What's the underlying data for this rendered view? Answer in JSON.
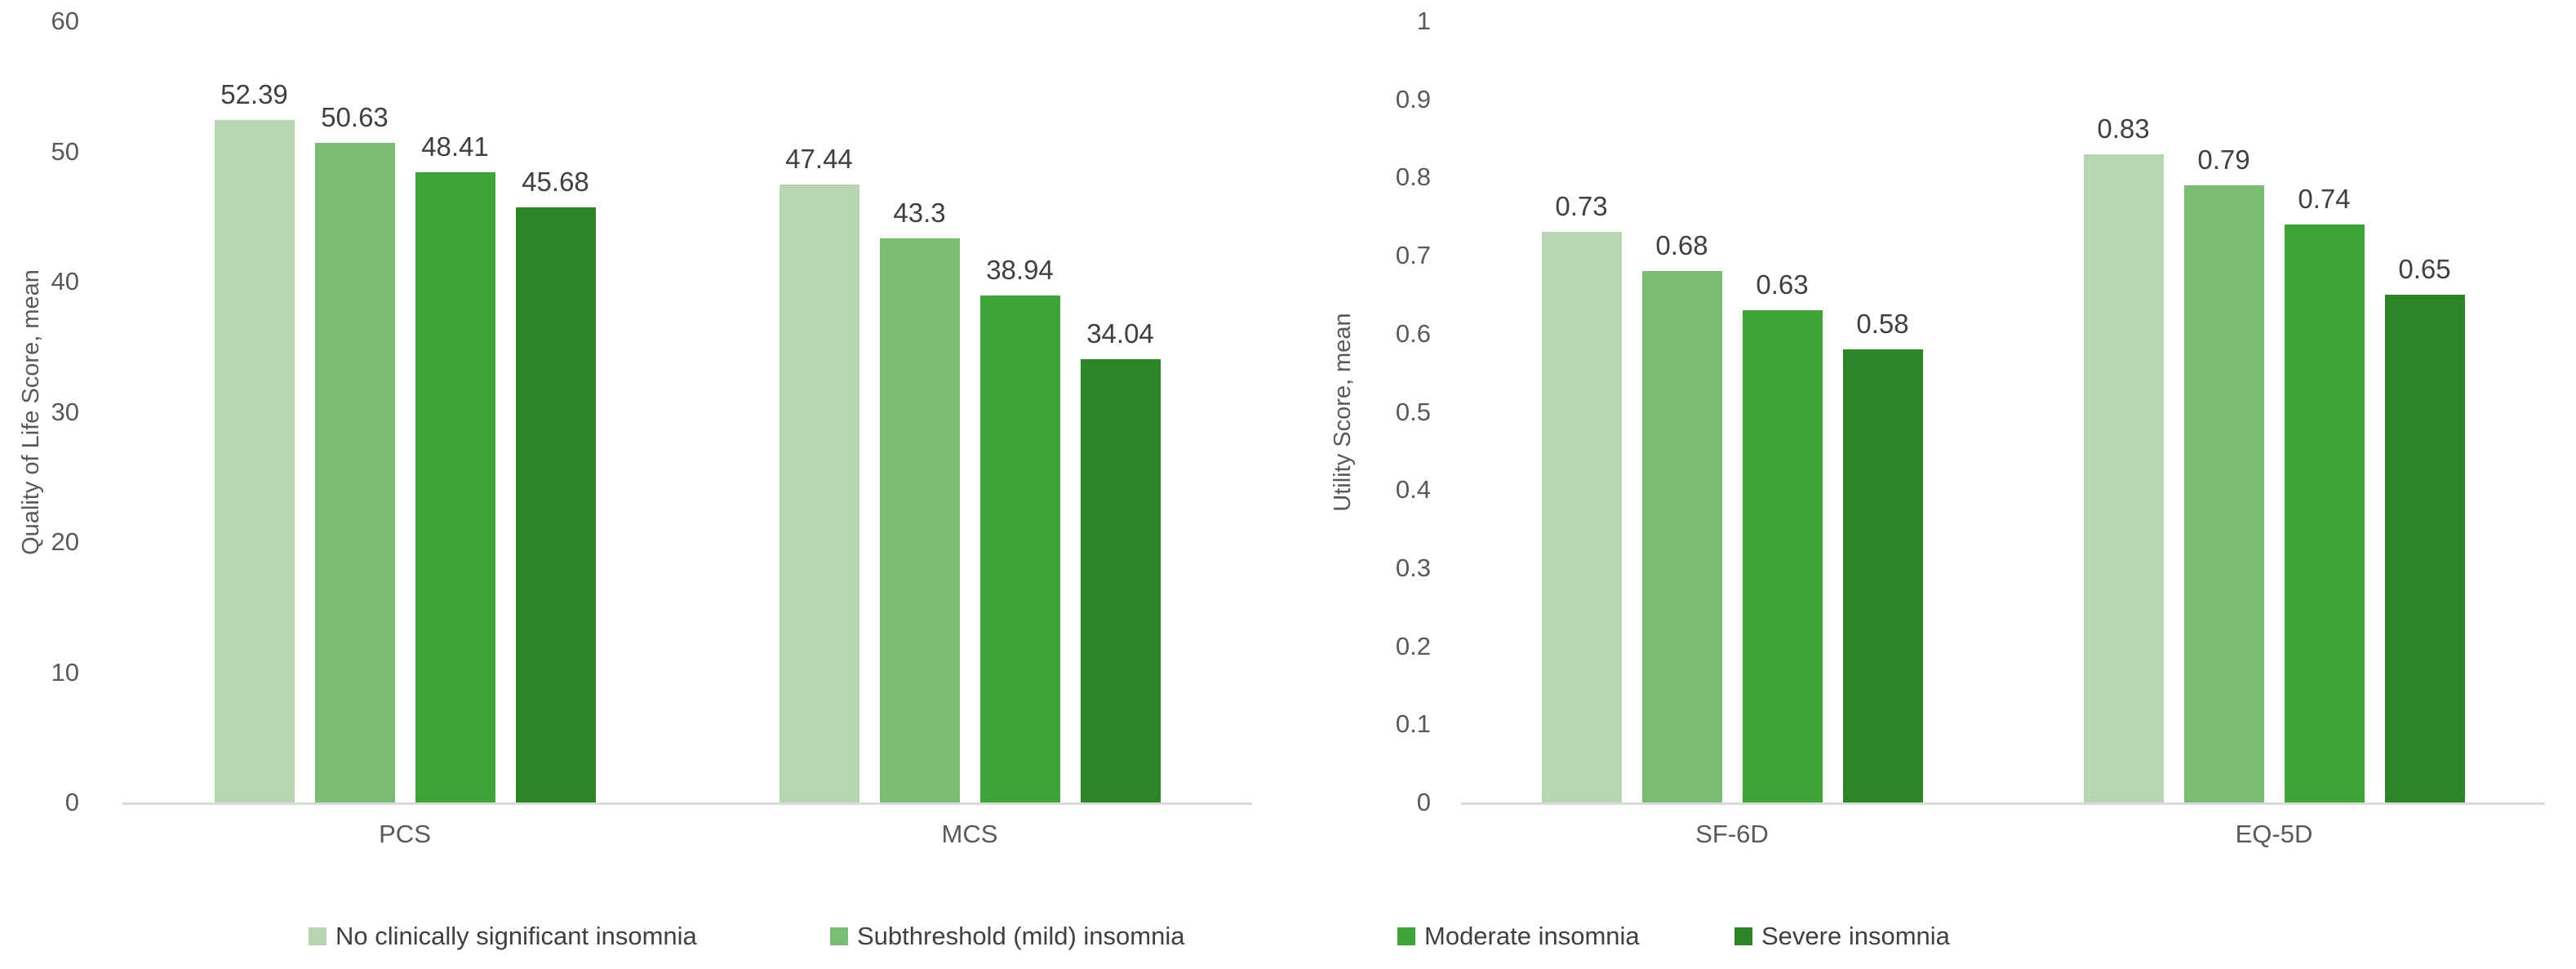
{
  "figure": {
    "background": "#ffffff",
    "text_color": "#404040",
    "axis_text_color": "#595959",
    "axis_line_color": "#d9d9d9"
  },
  "legend": {
    "position": "bottom",
    "items": [
      {
        "label": "No clinically significant insomnia",
        "color": "#b7d5b1"
      },
      {
        "label": "Subthreshold (mild) insomnia",
        "color": "#7abc74"
      },
      {
        "label": "Moderate insomnia",
        "color": "#3fa33a"
      },
      {
        "label": "Severe insomnia",
        "color": "#2e8527"
      }
    ]
  },
  "chart_data": [
    {
      "type": "bar",
      "title": "",
      "xlabel": "",
      "ylabel": "Quality of Life Score, mean",
      "categories": [
        "PCS",
        "MCS"
      ],
      "ylim": [
        0,
        60
      ],
      "yticks": [
        "0",
        "10",
        "20",
        "30",
        "40",
        "50",
        "60"
      ],
      "grid": false,
      "legend_position": "bottom",
      "series": [
        {
          "name": "No clinically significant insomnia",
          "color": "#b7d5b1",
          "values": [
            52.39,
            47.44
          ],
          "labels": [
            "52.39",
            "47.44"
          ]
        },
        {
          "name": "Subthreshold (mild) insomnia",
          "color": "#7abc74",
          "values": [
            50.63,
            43.3
          ],
          "labels": [
            "50.63",
            "43.3"
          ]
        },
        {
          "name": "Moderate insomnia",
          "color": "#3fa33a",
          "values": [
            48.41,
            38.94
          ],
          "labels": [
            "48.41",
            "38.94"
          ]
        },
        {
          "name": "Severe insomnia",
          "color": "#2e8527",
          "values": [
            45.68,
            34.04
          ],
          "labels": [
            "45.68",
            "34.04"
          ]
        }
      ]
    },
    {
      "type": "bar",
      "title": "",
      "xlabel": "",
      "ylabel": "Utility Score, mean",
      "categories": [
        "SF-6D",
        "EQ-5D"
      ],
      "ylim": [
        0,
        1
      ],
      "yticks": [
        "0",
        "0.1",
        "0.2",
        "0.3",
        "0.4",
        "0.5",
        "0.6",
        "0.7",
        "0.8",
        "0.9",
        "1"
      ],
      "grid": false,
      "legend_position": "bottom",
      "series": [
        {
          "name": "No clinically significant insomnia",
          "color": "#b7d5b1",
          "values": [
            0.73,
            0.83
          ],
          "labels": [
            "0.73",
            "0.83"
          ]
        },
        {
          "name": "Subthreshold (mild) insomnia",
          "color": "#7abc74",
          "values": [
            0.68,
            0.79
          ],
          "labels": [
            "0.68",
            "0.79"
          ]
        },
        {
          "name": "Moderate insomnia",
          "color": "#3fa33a",
          "values": [
            0.63,
            0.74
          ],
          "labels": [
            "0.63",
            "0.74"
          ]
        },
        {
          "name": "Severe insomnia",
          "color": "#2e8527",
          "values": [
            0.58,
            0.65
          ],
          "labels": [
            "0.58",
            "0.65"
          ]
        }
      ]
    }
  ]
}
